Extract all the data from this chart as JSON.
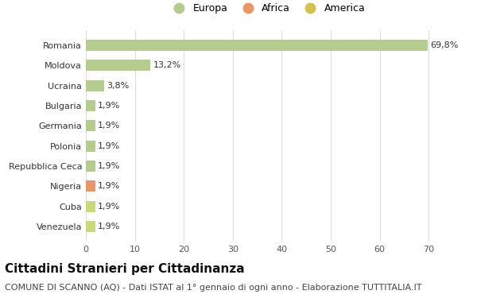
{
  "categories": [
    "Venezuela",
    "Cuba",
    "Nigeria",
    "Repubblica Ceca",
    "Polonia",
    "Germania",
    "Bulgaria",
    "Ucraina",
    "Moldova",
    "Romania"
  ],
  "values": [
    1.9,
    1.9,
    1.9,
    1.9,
    1.9,
    1.9,
    1.9,
    3.8,
    13.2,
    69.8
  ],
  "colors": [
    "#c8d87a",
    "#c8d87a",
    "#e8956a",
    "#b5cc8e",
    "#b5cc8e",
    "#b5cc8e",
    "#b5cc8e",
    "#b5cc8e",
    "#b5cc8e",
    "#b5cc8e"
  ],
  "labels": [
    "1,9%",
    "1,9%",
    "1,9%",
    "1,9%",
    "1,9%",
    "1,9%",
    "1,9%",
    "3,8%",
    "13,2%",
    "69,8%"
  ],
  "legend": [
    {
      "label": "Europa",
      "color": "#b5cc8e"
    },
    {
      "label": "Africa",
      "color": "#e8956a"
    },
    {
      "label": "America",
      "color": "#d4c050"
    }
  ],
  "xlim": [
    0,
    74
  ],
  "xticks": [
    0,
    10,
    20,
    30,
    40,
    50,
    60,
    70
  ],
  "title": "Cittadini Stranieri per Cittadinanza",
  "subtitle": "COMUNE DI SCANNO (AQ) - Dati ISTAT al 1° gennaio di ogni anno - Elaborazione TUTTITALIA.IT",
  "background_color": "#ffffff",
  "grid_color": "#dddddd",
  "bar_height": 0.55,
  "title_fontsize": 11,
  "subtitle_fontsize": 8,
  "label_fontsize": 8,
  "tick_fontsize": 8,
  "legend_fontsize": 9
}
